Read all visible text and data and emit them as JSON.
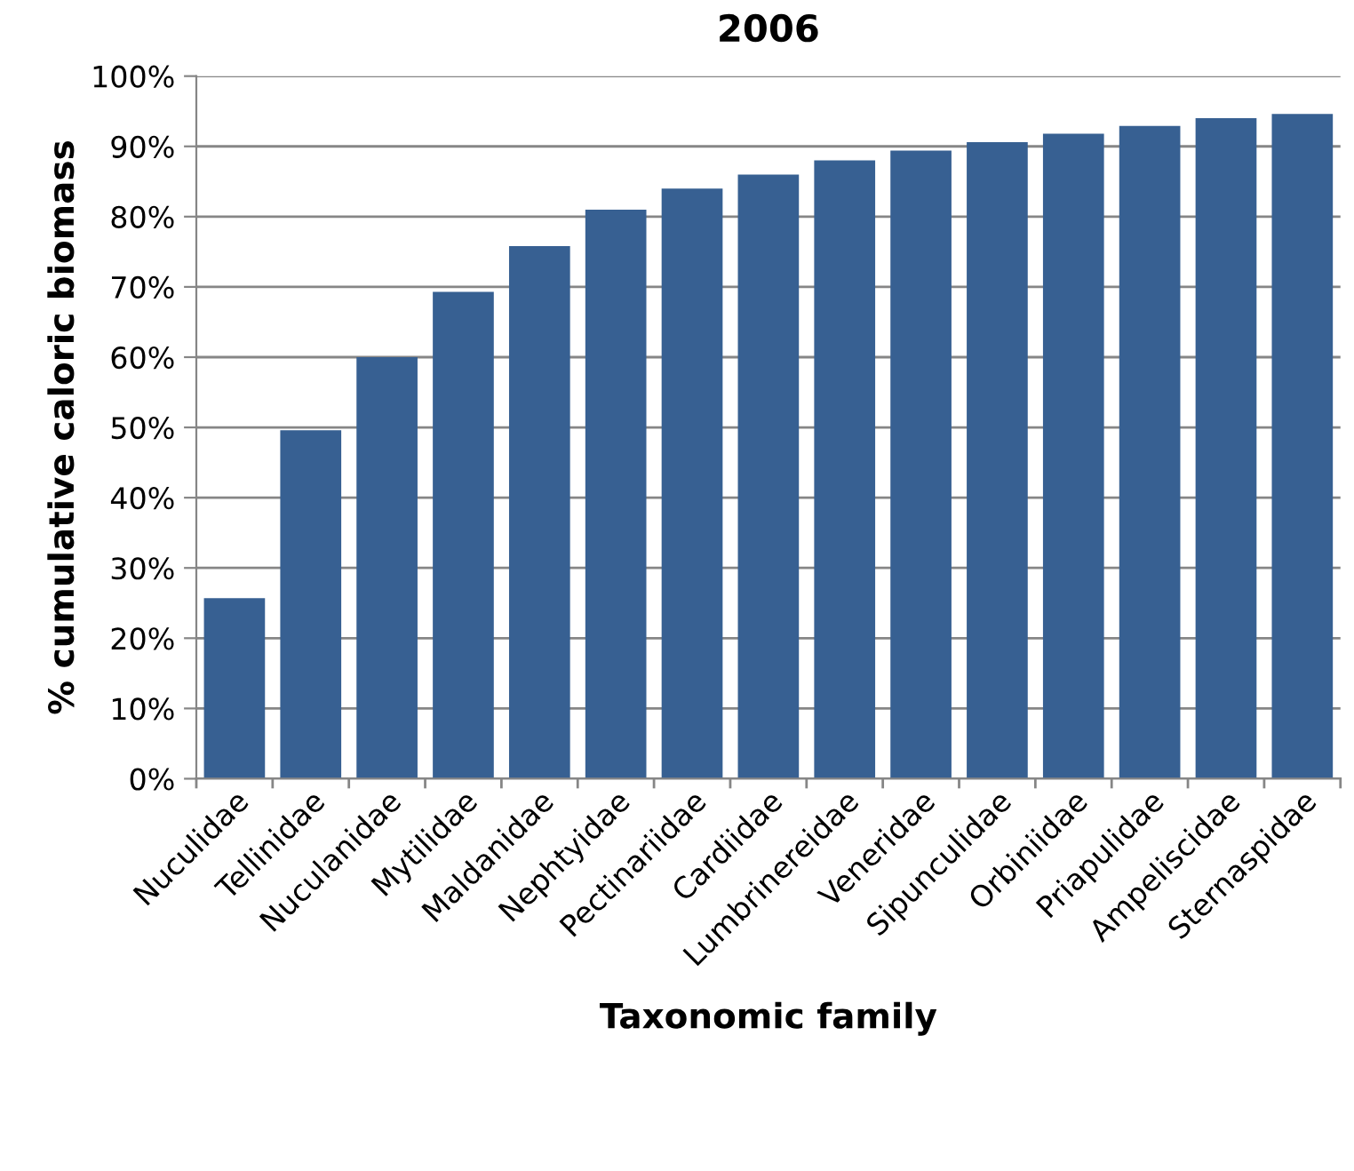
{
  "chart_data": {
    "type": "bar",
    "title": "2006",
    "xlabel": "Taxonomic family",
    "ylabel": "% cumulative caloric biomass",
    "categories": [
      "Nuculidae",
      "Tellinidae",
      "Nuculanidae",
      "Mytilidae",
      "Maldanidae",
      "Nephtyidae",
      "Pectinariidae",
      "Cardiidae",
      "Lumbrinereidae",
      "Veneridae",
      "Sipunculidae",
      "Orbiniidae",
      "Priapulidae",
      "Ampeliscidae",
      "Sternaspidae"
    ],
    "values": [
      25.7,
      49.6,
      60,
      69.3,
      75.8,
      81,
      84,
      86,
      88,
      89.4,
      90.6,
      91.8,
      92.9,
      94,
      94.6
    ],
    "color": "#376092",
    "ylim": [
      0,
      100
    ],
    "yticks": [
      {
        "value": 0,
        "label": "0%"
      },
      {
        "value": 10,
        "label": "10%"
      },
      {
        "value": 20,
        "label": "20%"
      },
      {
        "value": 30,
        "label": "30%"
      },
      {
        "value": 40,
        "label": "40%"
      },
      {
        "value": 50,
        "label": "50%"
      },
      {
        "value": 60,
        "label": "60%"
      },
      {
        "value": 70,
        "label": "70%"
      },
      {
        "value": 80,
        "label": "80%"
      },
      {
        "value": 90,
        "label": "90%"
      },
      {
        "value": 100,
        "label": "100%"
      }
    ],
    "grid": "y"
  }
}
